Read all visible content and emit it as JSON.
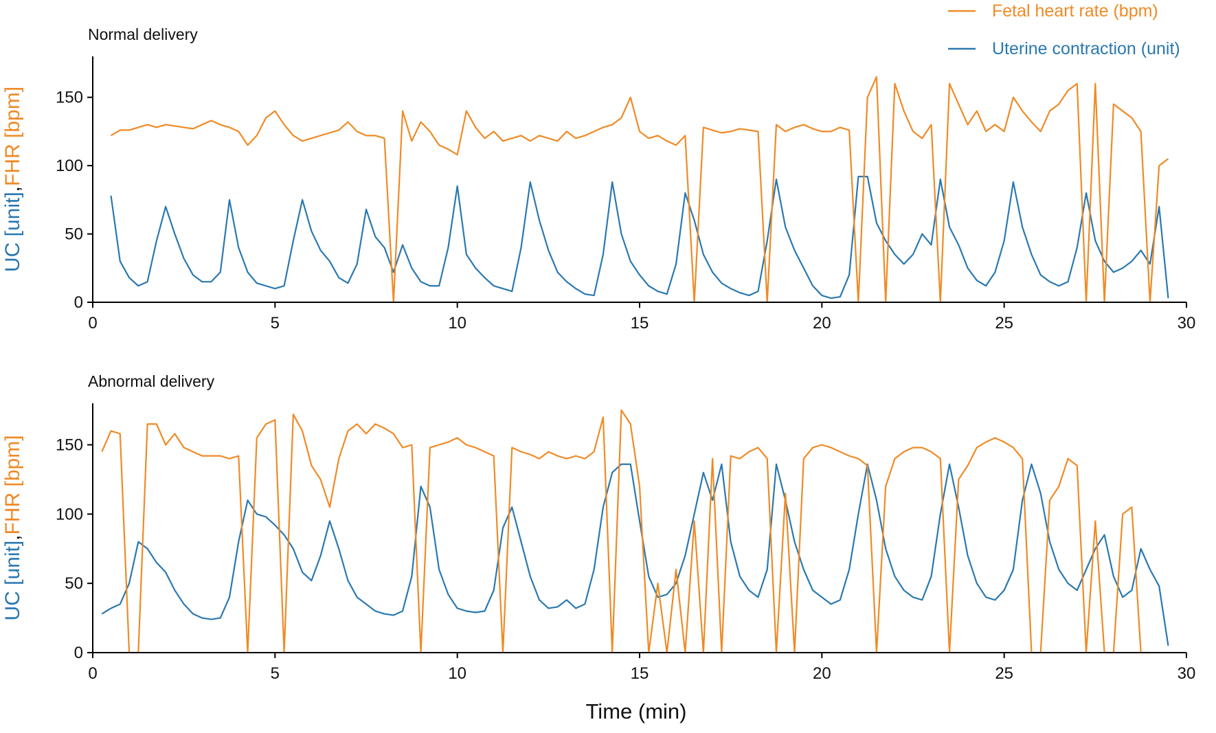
{
  "chart_data": [
    {
      "type": "line",
      "title": "Normal delivery",
      "ylabel": [
        "UC [unit]",
        ",",
        "FHR [bpm]"
      ],
      "xlim": [
        0,
        30
      ],
      "ylim": [
        0,
        180
      ],
      "xticks": [
        0,
        5,
        10,
        15,
        20,
        25,
        30
      ],
      "yticks": [
        0,
        50,
        100,
        150
      ],
      "legend": "upper right",
      "x": [
        0.5,
        0.75,
        1,
        1.25,
        1.5,
        1.75,
        2,
        2.25,
        2.5,
        2.75,
        3,
        3.25,
        3.5,
        3.75,
        4,
        4.25,
        4.5,
        4.75,
        5,
        5.25,
        5.5,
        5.75,
        6,
        6.25,
        6.5,
        6.75,
        7,
        7.25,
        7.5,
        7.75,
        8,
        8.25,
        8.5,
        8.75,
        9,
        9.25,
        9.5,
        9.75,
        10,
        10.25,
        10.5,
        10.75,
        11,
        11.25,
        11.5,
        11.75,
        12,
        12.25,
        12.5,
        12.75,
        13,
        13.25,
        13.5,
        13.75,
        14,
        14.25,
        14.5,
        14.75,
        15,
        15.25,
        15.5,
        15.75,
        16,
        16.25,
        16.5,
        16.75,
        17,
        17.25,
        17.5,
        17.75,
        18,
        18.25,
        18.5,
        18.75,
        19,
        19.25,
        19.5,
        19.75,
        20,
        20.25,
        20.5,
        20.75,
        21,
        21.25,
        21.5,
        21.75,
        22,
        22.25,
        22.5,
        22.75,
        23,
        23.25,
        23.5,
        23.75,
        24,
        24.25,
        24.5,
        24.75,
        25,
        25.25,
        25.5,
        25.75,
        26,
        26.25,
        26.5,
        26.75,
        27,
        27.25,
        27.5,
        27.75,
        28,
        28.25,
        28.5,
        28.75,
        29,
        29.25,
        29.5
      ],
      "series": [
        {
          "name": "Fetal heart rate (bpm)",
          "color": "#ef8a25",
          "values": [
            122,
            126,
            126,
            128,
            130,
            128,
            130,
            129,
            128,
            127,
            130,
            133,
            130,
            128,
            125,
            115,
            122,
            135,
            140,
            130,
            122,
            118,
            120,
            122,
            124,
            126,
            132,
            125,
            122,
            122,
            120,
            0,
            140,
            118,
            132,
            125,
            115,
            112,
            108,
            140,
            128,
            120,
            125,
            118,
            120,
            122,
            118,
            122,
            120,
            118,
            125,
            120,
            122,
            125,
            128,
            130,
            135,
            150,
            125,
            120,
            122,
            118,
            115,
            122,
            0,
            128,
            126,
            124,
            125,
            127,
            126,
            125,
            0,
            130,
            125,
            128,
            130,
            127,
            125,
            125,
            128,
            126,
            0,
            150,
            165,
            0,
            160,
            140,
            125,
            120,
            130,
            0,
            160,
            145,
            130,
            140,
            125,
            130,
            125,
            150,
            140,
            132,
            125,
            140,
            145,
            155,
            160,
            0,
            160,
            0,
            145,
            140,
            135,
            125,
            0,
            100,
            105
          ]
        },
        {
          "name": "Uterine contraction (unit)",
          "color": "#2a78b0",
          "values": [
            78,
            30,
            18,
            12,
            15,
            45,
            70,
            50,
            32,
            20,
            15,
            15,
            22,
            75,
            40,
            22,
            14,
            12,
            10,
            12,
            45,
            75,
            52,
            38,
            30,
            18,
            14,
            28,
            68,
            48,
            40,
            22,
            42,
            25,
            15,
            12,
            12,
            40,
            85,
            35,
            25,
            18,
            12,
            10,
            8,
            40,
            88,
            60,
            38,
            22,
            15,
            10,
            6,
            5,
            35,
            88,
            50,
            30,
            20,
            12,
            8,
            6,
            28,
            80,
            60,
            35,
            22,
            14,
            10,
            7,
            5,
            8,
            45,
            90,
            55,
            38,
            25,
            12,
            5,
            3,
            4,
            20,
            92,
            92,
            58,
            45,
            35,
            28,
            35,
            50,
            42,
            90,
            55,
            42,
            25,
            16,
            12,
            22,
            45,
            88,
            55,
            35,
            20,
            15,
            12,
            15,
            40,
            80,
            45,
            30,
            22,
            25,
            30,
            38,
            28,
            70,
            3
          ]
        }
      ]
    },
    {
      "type": "line",
      "title": "Abnormal delivery",
      "ylabel": [
        "UC [unit]",
        ",",
        "FHR [bpm]"
      ],
      "xlabel": "Time (min)",
      "xlim": [
        0,
        30
      ],
      "ylim": [
        0,
        180
      ],
      "xticks": [
        0,
        5,
        10,
        15,
        20,
        25,
        30
      ],
      "yticks": [
        0,
        50,
        100,
        150
      ],
      "x": [
        0.25,
        0.5,
        0.75,
        1,
        1.25,
        1.5,
        1.75,
        2,
        2.25,
        2.5,
        2.75,
        3,
        3.25,
        3.5,
        3.75,
        4,
        4.25,
        4.5,
        4.75,
        5,
        5.25,
        5.5,
        5.75,
        6,
        6.25,
        6.5,
        6.75,
        7,
        7.25,
        7.5,
        7.75,
        8,
        8.25,
        8.5,
        8.75,
        9,
        9.25,
        9.5,
        9.75,
        10,
        10.25,
        10.5,
        10.75,
        11,
        11.25,
        11.5,
        11.75,
        12,
        12.25,
        12.5,
        12.75,
        13,
        13.25,
        13.5,
        13.75,
        14,
        14.25,
        14.5,
        14.75,
        15,
        15.25,
        15.5,
        15.75,
        16,
        16.25,
        16.5,
        16.75,
        17,
        17.25,
        17.5,
        17.75,
        18,
        18.25,
        18.5,
        18.75,
        19,
        19.25,
        19.5,
        19.75,
        20,
        20.25,
        20.5,
        20.75,
        21,
        21.25,
        21.5,
        21.75,
        22,
        22.25,
        22.5,
        22.75,
        23,
        23.25,
        23.5,
        23.75,
        24,
        24.25,
        24.5,
        24.75,
        25,
        25.25,
        25.5,
        25.75,
        26,
        26.25,
        26.5,
        26.75,
        27,
        27.25,
        27.5,
        27.75,
        28,
        28.25,
        28.5,
        28.75,
        29,
        29.25,
        29.5
      ],
      "series": [
        {
          "name": "Fetal heart rate (bpm)",
          "color": "#ef8a25",
          "values": [
            145,
            160,
            158,
            0,
            0,
            165,
            165,
            150,
            158,
            148,
            145,
            142,
            142,
            142,
            140,
            142,
            0,
            155,
            165,
            168,
            0,
            172,
            160,
            135,
            125,
            105,
            140,
            160,
            165,
            158,
            165,
            162,
            158,
            148,
            150,
            0,
            148,
            150,
            152,
            155,
            150,
            148,
            145,
            142,
            0,
            148,
            145,
            143,
            140,
            145,
            142,
            140,
            142,
            140,
            145,
            170,
            0,
            175,
            165,
            120,
            0,
            50,
            0,
            60,
            0,
            95,
            0,
            140,
            0,
            142,
            140,
            145,
            148,
            140,
            0,
            115,
            0,
            140,
            148,
            150,
            148,
            145,
            142,
            140,
            135,
            0,
            120,
            140,
            145,
            148,
            148,
            145,
            140,
            0,
            125,
            135,
            148,
            152,
            155,
            152,
            148,
            140,
            0,
            0,
            110,
            120,
            140,
            135,
            0,
            95,
            0,
            0,
            100,
            105,
            0,
            0,
            null,
            null
          ]
        },
        {
          "name": "Uterine contraction (unit)",
          "color": "#2a78b0",
          "values": [
            28,
            32,
            35,
            50,
            80,
            75,
            65,
            58,
            45,
            35,
            28,
            25,
            24,
            25,
            40,
            80,
            110,
            100,
            98,
            92,
            85,
            75,
            58,
            52,
            70,
            95,
            75,
            52,
            40,
            35,
            30,
            28,
            27,
            30,
            55,
            120,
            105,
            60,
            42,
            32,
            30,
            29,
            30,
            45,
            90,
            105,
            80,
            55,
            38,
            32,
            33,
            38,
            32,
            35,
            60,
            105,
            130,
            136,
            136,
            95,
            55,
            40,
            42,
            50,
            70,
            100,
            130,
            110,
            136,
            80,
            55,
            45,
            40,
            60,
            136,
            110,
            80,
            60,
            45,
            40,
            35,
            38,
            60,
            100,
            136,
            110,
            75,
            55,
            45,
            40,
            38,
            55,
            100,
            136,
            105,
            70,
            50,
            40,
            38,
            45,
            60,
            110,
            136,
            115,
            80,
            60,
            50,
            45,
            60,
            75,
            85,
            55,
            40,
            45,
            75,
            60,
            48,
            5
          ]
        }
      ]
    }
  ]
}
